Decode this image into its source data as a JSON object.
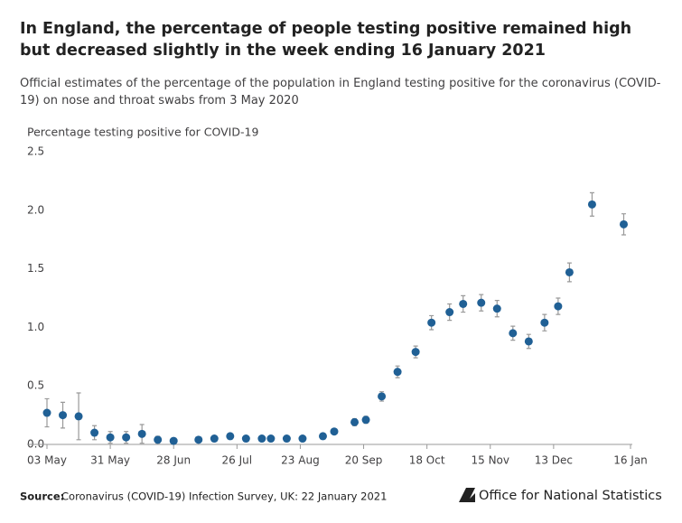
{
  "chart_data": {
    "type": "scatter",
    "title": "In England, the percentage of people testing positive remained high but decreased slightly in the week ending 16 January 2021",
    "subtitle": "Official estimates of the percentage of the population in England testing positive for the coronavirus (COVID-19) on nose and throat swabs from 3 May 2020",
    "y_label": "Percentage testing positive for COVID-19",
    "source_label": "Source:",
    "source": "Coronavirus (COVID-19) Infection Survey, UK: 22 January 2021",
    "logo": "Office for National Statistics",
    "color": "#206095",
    "error_color": "#999999",
    "x": [
      "2020-05-03",
      "2020-05-10",
      "2020-05-17",
      "2020-05-24",
      "2020-05-31",
      "2020-06-07",
      "2020-06-14",
      "2020-06-21",
      "2020-06-28",
      "2020-07-09",
      "2020-07-16",
      "2020-07-23",
      "2020-07-30",
      "2020-08-06",
      "2020-08-10",
      "2020-08-17",
      "2020-08-24",
      "2020-09-02",
      "2020-09-07",
      "2020-09-16",
      "2020-09-21",
      "2020-09-28",
      "2020-10-05",
      "2020-10-13",
      "2020-10-20",
      "2020-10-28",
      "2020-11-03",
      "2020-11-11",
      "2020-11-18",
      "2020-11-25",
      "2020-12-02",
      "2020-12-09",
      "2020-12-15",
      "2020-12-20",
      "2020-12-30",
      "2021-01-13"
    ],
    "values": [
      0.27,
      0.25,
      0.24,
      0.1,
      0.06,
      0.06,
      0.09,
      0.04,
      0.03,
      0.04,
      0.05,
      0.07,
      0.05,
      0.05,
      0.05,
      0.05,
      0.05,
      0.07,
      0.11,
      0.19,
      0.21,
      0.41,
      0.62,
      0.79,
      1.04,
      1.13,
      1.2,
      1.21,
      1.16,
      0.95,
      0.88,
      1.04,
      1.18,
      1.47,
      2.05,
      1.88
    ],
    "errors": [
      0.12,
      0.11,
      0.2,
      0.06,
      0.05,
      0.05,
      0.08,
      0.03,
      0.02,
      0.02,
      0.02,
      0.02,
      0.02,
      0.02,
      0.02,
      0.02,
      0.02,
      0.02,
      0.02,
      0.03,
      0.03,
      0.04,
      0.05,
      0.05,
      0.06,
      0.07,
      0.07,
      0.07,
      0.07,
      0.06,
      0.06,
      0.07,
      0.07,
      0.08,
      0.1,
      0.09
    ],
    "xlim": [
      "2020-05-03",
      "2021-01-16"
    ],
    "xticks": [
      {
        "value": "2020-05-03",
        "label": "03 May"
      },
      {
        "value": "2020-05-31",
        "label": "31 May"
      },
      {
        "value": "2020-06-28",
        "label": "28 Jun"
      },
      {
        "value": "2020-07-26",
        "label": "26 Jul"
      },
      {
        "value": "2020-08-23",
        "label": "23 Aug"
      },
      {
        "value": "2020-09-20",
        "label": "20 Sep"
      },
      {
        "value": "2020-10-18",
        "label": "18 Oct"
      },
      {
        "value": "2020-11-15",
        "label": "15 Nov"
      },
      {
        "value": "2020-12-13",
        "label": "13 Dec"
      },
      {
        "value": "2021-01-16",
        "label": "16 Jan"
      }
    ],
    "ylim": [
      0,
      2.5
    ],
    "yticks": [
      {
        "value": 0,
        "label": "0.0"
      },
      0.5,
      {
        "value": 1,
        "label": "1.0"
      },
      1.5,
      {
        "value": 2,
        "label": "2.0"
      },
      2.5
    ]
  }
}
